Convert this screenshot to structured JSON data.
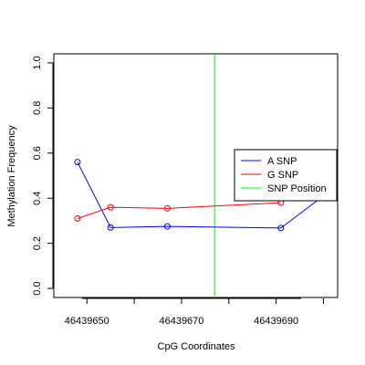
{
  "chart_data": {
    "type": "line",
    "title": "",
    "xlabel": "CpG Coordinates",
    "ylabel": "Methylation Frequency",
    "xlim": [
      46439643,
      46439703
    ],
    "ylim": [
      -0.04,
      1.04
    ],
    "x_ticks": [
      46439650,
      46439670,
      46439690
    ],
    "x_tick_labels": [
      "46439650",
      "46439670",
      "46439690"
    ],
    "y_ticks": [
      0.0,
      0.2,
      0.4,
      0.6,
      0.8,
      1.0
    ],
    "y_tick_labels": [
      "0.0",
      "0.2",
      "0.4",
      "0.6",
      "0.8",
      "1.0"
    ],
    "grid": false,
    "legend_position": "right",
    "series": [
      {
        "name": "A SNP",
        "color": "#0000ff",
        "x": [
          46439648,
          46439655,
          46439667,
          46439691,
          46439700
        ],
        "y": [
          0.56,
          0.27,
          0.275,
          0.268,
          0.41
        ],
        "markers": [
          true,
          true,
          true,
          true,
          false
        ]
      },
      {
        "name": "G SNP",
        "color": "#ff0000",
        "x": [
          46439648,
          46439655,
          46439667,
          46439691
        ],
        "y": [
          0.31,
          0.36,
          0.355,
          0.38
        ],
        "markers": [
          true,
          true,
          true,
          true
        ]
      }
    ],
    "vlines": [
      {
        "name": "SNP Position",
        "color": "#00ff00",
        "x": 46439677
      }
    ],
    "legend": [
      {
        "label": "A SNP",
        "color": "#0000ff"
      },
      {
        "label": "G SNP",
        "color": "#ff0000"
      },
      {
        "label": "SNP Position",
        "color": "#00ff00"
      }
    ]
  }
}
